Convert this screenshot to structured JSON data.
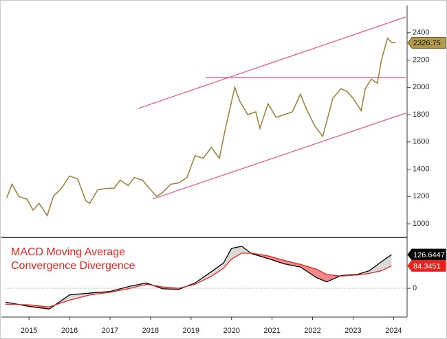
{
  "chart_data": [
    {
      "type": "line",
      "xlim": [
        2014.92,
        2024.8
      ],
      "ylim": [
        915,
        2590
      ],
      "yticks": [
        1000,
        1200,
        1400,
        1600,
        1800,
        2000,
        2200,
        2400
      ],
      "grid": false,
      "x": [
        2014.95,
        2015.08,
        2015.25,
        2015.45,
        2015.6,
        2015.75,
        2015.95,
        2016.1,
        2016.3,
        2016.5,
        2016.7,
        2016.9,
        2017.0,
        2017.2,
        2017.45,
        2017.6,
        2017.75,
        2017.95,
        2018.1,
        2018.3,
        2018.5,
        2018.65,
        2018.8,
        2019.0,
        2019.2,
        2019.4,
        2019.6,
        2019.8,
        2020.0,
        2020.2,
        2020.35,
        2020.58,
        2020.7,
        2020.9,
        2021.1,
        2021.2,
        2021.4,
        2021.6,
        2021.8,
        2022.0,
        2022.2,
        2022.35,
        2022.55,
        2022.75,
        2022.85,
        2023.0,
        2023.2,
        2023.35,
        2023.5,
        2023.7,
        2023.8,
        2023.95,
        2024.1,
        2024.2,
        2024.35,
        2024.45,
        2024.55
      ],
      "series": [
        {
          "color": "#9c8540",
          "values": [
            1190,
            1290,
            1200,
            1180,
            1100,
            1150,
            1060,
            1200,
            1260,
            1350,
            1330,
            1170,
            1150,
            1250,
            1260,
            1260,
            1320,
            1280,
            1340,
            1320,
            1250,
            1200,
            1230,
            1290,
            1300,
            1340,
            1500,
            1480,
            1560,
            1480,
            1700,
            2000,
            1900,
            1800,
            1820,
            1700,
            1880,
            1780,
            1800,
            1820,
            1950,
            1840,
            1720,
            1640,
            1750,
            1920,
            1990,
            1970,
            1920,
            1830,
            1990,
            2060,
            2030,
            2200,
            2360,
            2330,
            2326.75
          ]
        }
      ],
      "line_color": "#f0507a",
      "lines": [
        {
          "x": [
            2018.2,
            2024.8
          ],
          "y": [
            1846,
            2516
          ]
        },
        {
          "x": [
            2018.56,
            2024.8
          ],
          "y": [
            1182,
            1811
          ]
        },
        {
          "x": [
            2019.86,
            2024.8
          ],
          "y": [
            2073,
            2073
          ]
        }
      ]
    },
    {
      "type": "line",
      "title": [
        "MACD Moving Average",
        "Convergence Divergence"
      ],
      "xlim": [
        2014.92,
        2024.8
      ],
      "ylim": [
        -103,
        181
      ],
      "yticks": [
        0
      ],
      "grid": true,
      "xticks": [
        {
          "value": 2015.5,
          "label": "2015"
        },
        {
          "value": 2016.5,
          "label": "2016"
        },
        {
          "value": 2017.5,
          "label": "2017"
        },
        {
          "value": 2018.5,
          "label": "2018"
        },
        {
          "value": 2019.5,
          "label": "2019"
        },
        {
          "value": 2020.5,
          "label": "2020"
        },
        {
          "value": 2021.5,
          "label": "2021"
        },
        {
          "value": 2022.5,
          "label": "2022"
        },
        {
          "value": 2023.5,
          "label": "2023"
        },
        {
          "value": 2024.5,
          "label": "2024"
        }
      ],
      "x": [
        2014.92,
        2015.5,
        2016.0,
        2016.5,
        2017.0,
        2017.5,
        2018.0,
        2018.4,
        2018.8,
        2019.2,
        2019.6,
        2020.0,
        2020.3,
        2020.5,
        2020.75,
        2021.0,
        2021.4,
        2021.8,
        2022.2,
        2022.6,
        2022.85,
        2023.2,
        2023.6,
        2023.9,
        2024.2,
        2024.45
      ],
      "series": [
        {
          "color": "#000000",
          "values": [
            -52,
            -68,
            -78,
            -25,
            -18,
            -12,
            8,
            20,
            -2,
            -4,
            20,
            62,
            95,
            150,
            158,
            130,
            112,
            92,
            80,
            40,
            24,
            48,
            52,
            66,
            100,
            126.6447
          ]
        },
        {
          "color": "#e8231f",
          "values": [
            -60,
            -62,
            -70,
            -45,
            -25,
            -15,
            0,
            15,
            5,
            0,
            15,
            45,
            75,
            110,
            132,
            132,
            122,
            105,
            90,
            72,
            52,
            46,
            50,
            56,
            66,
            84.3451
          ]
        }
      ]
    }
  ]
}
